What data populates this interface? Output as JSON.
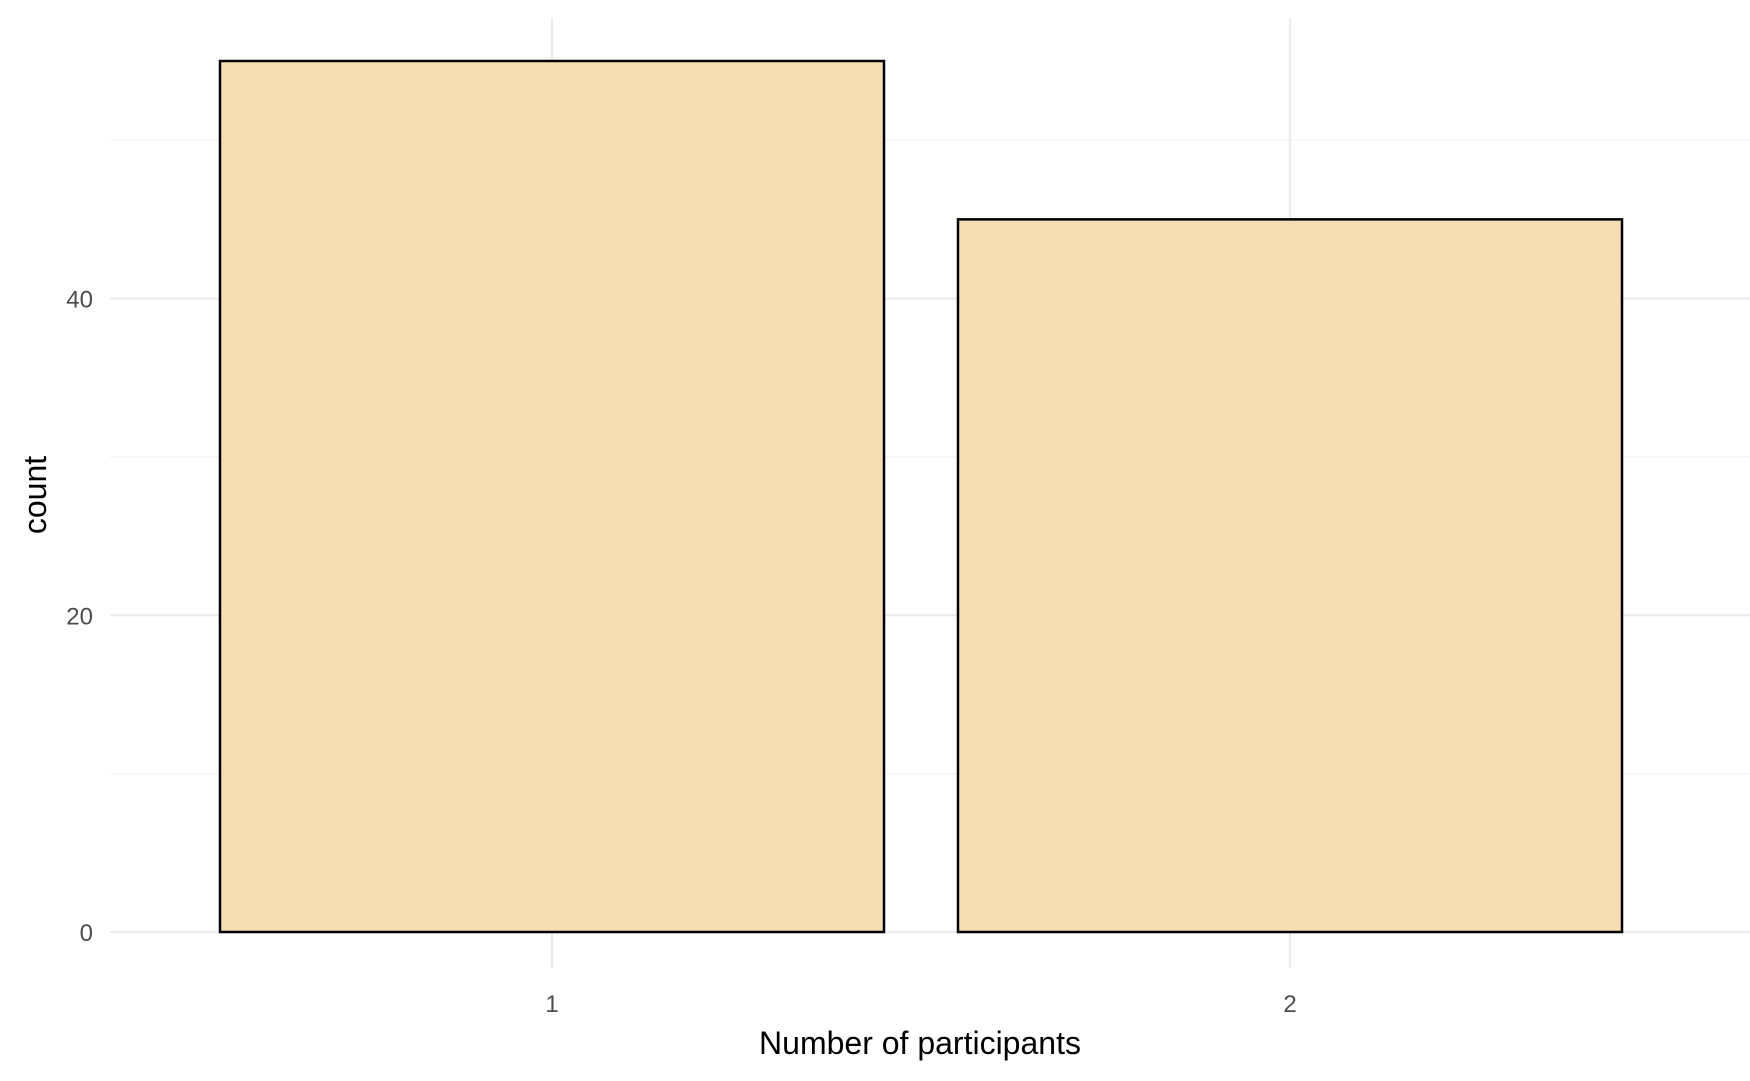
{
  "chart_data": {
    "type": "bar",
    "title": "",
    "xlabel": "Number of participants",
    "ylabel": "count",
    "categories": [
      "1",
      "2"
    ],
    "values": [
      55,
      45
    ],
    "ylim": [
      0,
      57.75
    ],
    "yticks": [
      0,
      20,
      40
    ],
    "yticks_minor": [
      10,
      30,
      50
    ],
    "ytick_labels": [
      "0",
      "20",
      "40"
    ],
    "grid": true,
    "legend": "none",
    "colors": {
      "bar_fill": "#f5deb3",
      "bar_stroke": "#000000",
      "grid_major": "#ebebeb",
      "grid_minor": "#f3f3f3",
      "tick_text": "#4d4d4d",
      "axis_title": "#000000"
    }
  }
}
